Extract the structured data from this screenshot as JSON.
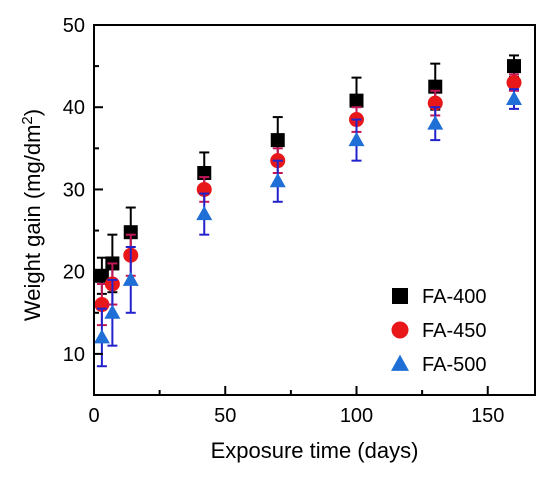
{
  "chart_data": {
    "type": "scatter",
    "xlabel": "Exposure time (days)",
    "ylabel_main": "Weight gain (mg/dm",
    "ylabel_sup": "2",
    "ylabel_tail": ")",
    "xlim": [
      0,
      168
    ],
    "ylim": [
      5,
      50
    ],
    "xticks": [
      0,
      50,
      100,
      150
    ],
    "yticks": [
      10,
      20,
      30,
      40,
      50
    ],
    "grid": false,
    "legend_position": "bottom-right",
    "x": [
      3,
      7,
      14,
      42,
      70,
      100,
      130,
      160
    ],
    "series": [
      {
        "name": "FA-400",
        "marker": "square",
        "color": "#000000",
        "error_color": "#000000",
        "y": [
          19.5,
          21.0,
          24.8,
          32.0,
          36.0,
          40.8,
          42.5,
          45.0
        ],
        "error": [
          2.2,
          3.5,
          3.0,
          2.5,
          2.8,
          2.8,
          2.8,
          1.3
        ]
      },
      {
        "name": "FA-450",
        "marker": "circle",
        "color": "#e8171a",
        "error_color": "#c2185b",
        "y": [
          16.0,
          18.5,
          22.0,
          30.0,
          33.5,
          38.5,
          40.5,
          43.0
        ],
        "error": [
          2.5,
          2.5,
          2.5,
          1.5,
          1.5,
          1.5,
          1.5,
          1.0
        ]
      },
      {
        "name": "FA-500",
        "marker": "triangle",
        "color": "#1f6fd6",
        "error_color": "#2222cc",
        "y": [
          12.0,
          15.0,
          19.0,
          27.0,
          31.0,
          36.0,
          38.0,
          41.0
        ],
        "error": [
          3.5,
          4.0,
          4.0,
          2.5,
          2.5,
          2.5,
          2.0,
          1.2
        ]
      }
    ]
  }
}
